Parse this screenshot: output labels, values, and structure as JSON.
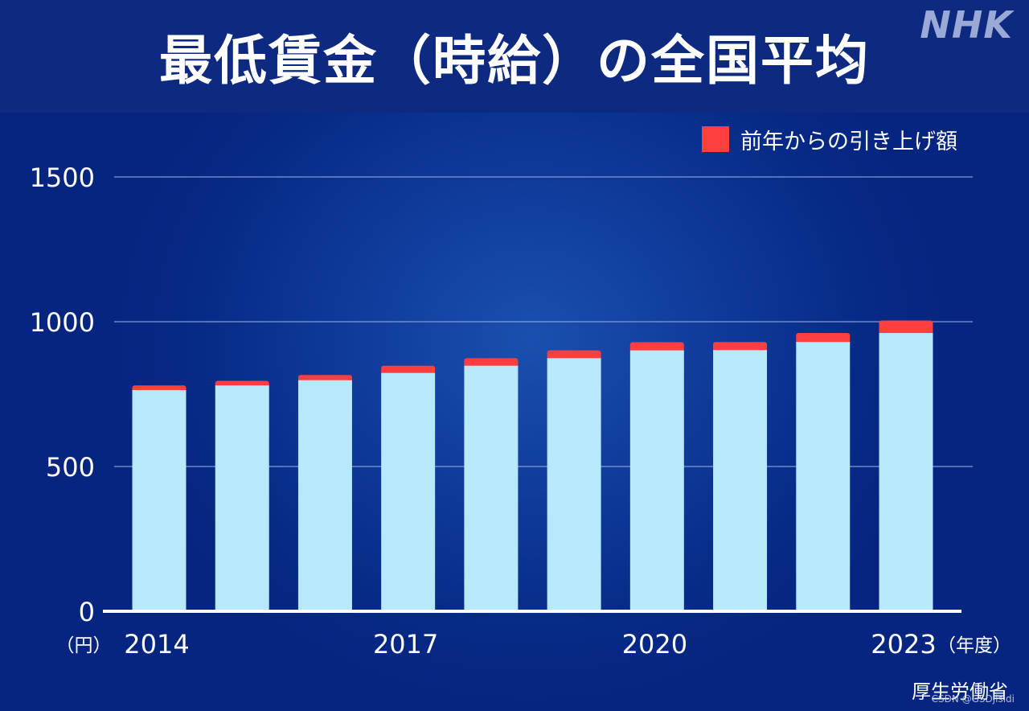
{
  "header": {
    "title": "最低賃金（時給）の全国平均",
    "logo": "NHK"
  },
  "legend": {
    "label": "前年からの引き上げ額",
    "color": "#ff3f3f"
  },
  "source": "厚生労働省",
  "watermark": "CSDN @GSDjisidi",
  "chart_data": {
    "type": "bar",
    "stacked": true,
    "title": "最低賃金（時給）の全国平均",
    "ylabel": "（円）",
    "xlabel": "（年度）",
    "ylim": [
      0,
      1500
    ],
    "yticks": [
      0,
      500,
      1000,
      1500
    ],
    "grid": true,
    "legend_position": "top-right",
    "categories": [
      "2014",
      "2015",
      "2016",
      "2017",
      "2018",
      "2019",
      "2020",
      "2021",
      "2022",
      "2023"
    ],
    "x_tick_labels": [
      "2014",
      "2017",
      "2020",
      "2023"
    ],
    "series": [
      {
        "values": [
          764,
          780,
          798,
          823,
          848,
          874,
          901,
          902,
          930,
          961
        ],
        "color": "#b8e8fb"
      },
      {
        "name": "前年からの引き上げ額",
        "values": [
          16,
          16,
          18,
          25,
          26,
          27,
          28,
          28,
          31,
          43
        ],
        "color": "#ff3f3f"
      }
    ]
  }
}
